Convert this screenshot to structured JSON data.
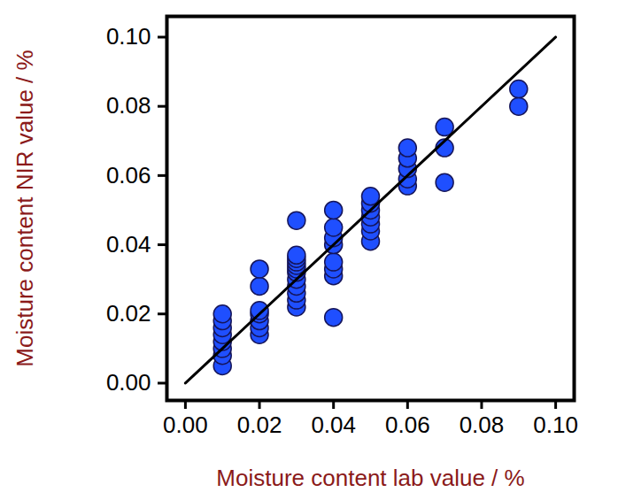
{
  "chart_data": {
    "type": "scatter",
    "x_label": "Moisture content lab value / %",
    "y_label": "Moisture content NIR value / %",
    "xlim": [
      -0.005,
      0.105
    ],
    "ylim": [
      -0.005,
      0.106
    ],
    "xticks": [
      {
        "value": 0,
        "label": "0.00"
      },
      {
        "value": 0.02,
        "label": "0.02"
      },
      {
        "value": 0.04,
        "label": "0.04"
      },
      {
        "value": 0.06,
        "label": "0.06"
      },
      {
        "value": 0.08,
        "label": "0.08"
      },
      {
        "value": 0.1,
        "label": "0.10"
      }
    ],
    "yticks": [
      {
        "value": 0,
        "label": "0.00"
      },
      {
        "value": 0.02,
        "label": "0.02"
      },
      {
        "value": 0.04,
        "label": "0.04"
      },
      {
        "value": 0.06,
        "label": "0.06"
      },
      {
        "value": 0.08,
        "label": "0.08"
      },
      {
        "value": 0.1,
        "label": "0.10"
      }
    ],
    "grid": false,
    "series": [
      {
        "type": "scatter",
        "color": "#1f4fff",
        "marker": "circle",
        "x": [
          0.01,
          0.01,
          0.01,
          0.01,
          0.01,
          0.01,
          0.01,
          0.01,
          0.02,
          0.02,
          0.02,
          0.02,
          0.02,
          0.02,
          0.02,
          0.03,
          0.03,
          0.03,
          0.03,
          0.03,
          0.03,
          0.03,
          0.03,
          0.03,
          0.03,
          0.03,
          0.03,
          0.04,
          0.04,
          0.04,
          0.04,
          0.04,
          0.04,
          0.04,
          0.04,
          0.05,
          0.05,
          0.05,
          0.05,
          0.05,
          0.05,
          0.05,
          0.06,
          0.06,
          0.06,
          0.06,
          0.06,
          0.07,
          0.07,
          0.07,
          0.09,
          0.09
        ],
        "values": [
          0.005,
          0.008,
          0.01,
          0.012,
          0.014,
          0.016,
          0.018,
          0.02,
          0.014,
          0.016,
          0.018,
          0.02,
          0.021,
          0.028,
          0.033,
          0.022,
          0.024,
          0.026,
          0.028,
          0.03,
          0.032,
          0.033,
          0.034,
          0.035,
          0.036,
          0.037,
          0.047,
          0.019,
          0.031,
          0.033,
          0.035,
          0.04,
          0.042,
          0.045,
          0.05,
          0.041,
          0.044,
          0.046,
          0.048,
          0.05,
          0.052,
          0.054,
          0.057,
          0.059,
          0.062,
          0.065,
          0.068,
          0.058,
          0.068,
          0.074,
          0.08,
          0.085
        ]
      },
      {
        "type": "line",
        "color": "#000000",
        "line_style": "solid",
        "x": [
          0,
          0.1
        ],
        "values": [
          0,
          0.1
        ]
      }
    ]
  }
}
